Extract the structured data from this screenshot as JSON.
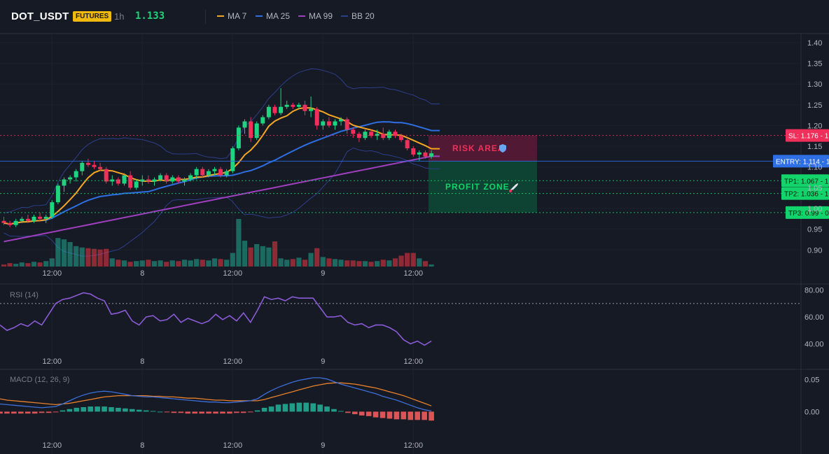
{
  "header": {
    "symbol": "DOT_USDT",
    "badge": "FUTURES",
    "timeframe": "1h",
    "last_price": "1.133",
    "indicators": [
      {
        "label": "MA 7",
        "color": "#f5a623"
      },
      {
        "label": "MA 25",
        "color": "#2f6fe4"
      },
      {
        "label": "MA 99",
        "color": "#a03fbf"
      },
      {
        "label": "BB 20",
        "color": "#2d3e8a"
      }
    ]
  },
  "colors": {
    "up": "#22ab94",
    "down": "#f23645",
    "candle_up": "#1fd47e",
    "candle_down": "#f0305a",
    "sl": "#f0305a",
    "entry": "#2f6fe4",
    "tp": "#13d46a",
    "rsi": "#8a5bd6",
    "macd": "#3c6fd8",
    "signal": "#e8812a"
  },
  "chart_data": [
    {
      "type": "candlestick",
      "title": "DOT_USDT",
      "ylim": [
        0.86,
        1.42
      ],
      "y_ticks": [
        "1.40",
        "1.35",
        "1.30",
        "1.25",
        "1.20",
        "1.15",
        "1.10",
        "1.05",
        "1.00",
        "0.95",
        "0.90"
      ],
      "x_ticks": [
        "12:00",
        "8",
        "12:00",
        "9",
        "12:00"
      ],
      "x_tick_index": [
        8,
        23,
        38,
        53,
        68
      ],
      "candles": [
        [
          0.97,
          0.98,
          0.96,
          0.965
        ],
        [
          0.965,
          0.97,
          0.955,
          0.96
        ],
        [
          0.96,
          0.975,
          0.955,
          0.97
        ],
        [
          0.97,
          0.98,
          0.965,
          0.975
        ],
        [
          0.975,
          0.985,
          0.965,
          0.97
        ],
        [
          0.97,
          0.985,
          0.965,
          0.98
        ],
        [
          0.98,
          0.99,
          0.97,
          0.975
        ],
        [
          0.975,
          0.985,
          0.965,
          0.98
        ],
        [
          0.98,
          1.02,
          0.975,
          1.015
        ],
        [
          1.015,
          1.06,
          1.01,
          1.055
        ],
        [
          1.055,
          1.075,
          1.04,
          1.07
        ],
        [
          1.07,
          1.08,
          1.06,
          1.075
        ],
        [
          1.075,
          1.095,
          1.065,
          1.09
        ],
        [
          1.09,
          1.115,
          1.08,
          1.11
        ],
        [
          1.11,
          1.12,
          1.1,
          1.105
        ],
        [
          1.105,
          1.115,
          1.095,
          1.1
        ],
        [
          1.1,
          1.11,
          1.09,
          1.095
        ],
        [
          1.095,
          1.1,
          1.06,
          1.065
        ],
        [
          1.065,
          1.08,
          1.055,
          1.07
        ],
        [
          1.07,
          1.075,
          1.055,
          1.06
        ],
        [
          1.06,
          1.085,
          1.055,
          1.08
        ],
        [
          1.08,
          1.09,
          1.045,
          1.05
        ],
        [
          1.05,
          1.07,
          1.045,
          1.065
        ],
        [
          1.065,
          1.08,
          1.055,
          1.07
        ],
        [
          1.07,
          1.08,
          1.06,
          1.065
        ],
        [
          1.065,
          1.075,
          1.055,
          1.07
        ],
        [
          1.07,
          1.085,
          1.065,
          1.08
        ],
        [
          1.08,
          1.085,
          1.06,
          1.065
        ],
        [
          1.065,
          1.08,
          1.06,
          1.075
        ],
        [
          1.075,
          1.08,
          1.06,
          1.065
        ],
        [
          1.065,
          1.075,
          1.055,
          1.07
        ],
        [
          1.07,
          1.085,
          1.065,
          1.08
        ],
        [
          1.08,
          1.1,
          1.07,
          1.095
        ],
        [
          1.095,
          1.1,
          1.075,
          1.08
        ],
        [
          1.08,
          1.095,
          1.075,
          1.09
        ],
        [
          1.09,
          1.1,
          1.08,
          1.095
        ],
        [
          1.095,
          1.1,
          1.075,
          1.08
        ],
        [
          1.08,
          1.095,
          1.075,
          1.09
        ],
        [
          1.09,
          1.15,
          1.085,
          1.145
        ],
        [
          1.145,
          1.2,
          1.14,
          1.195
        ],
        [
          1.195,
          1.215,
          1.18,
          1.21
        ],
        [
          1.21,
          1.22,
          1.16,
          1.17
        ],
        [
          1.17,
          1.21,
          1.165,
          1.205
        ],
        [
          1.205,
          1.225,
          1.2,
          1.22
        ],
        [
          1.22,
          1.25,
          1.215,
          1.245
        ],
        [
          1.245,
          1.25,
          1.225,
          1.23
        ],
        [
          1.23,
          1.29,
          1.225,
          1.245
        ],
        [
          1.245,
          1.26,
          1.24,
          1.25
        ],
        [
          1.25,
          1.255,
          1.24,
          1.245
        ],
        [
          1.245,
          1.255,
          1.24,
          1.25
        ],
        [
          1.25,
          1.26,
          1.225,
          1.235
        ],
        [
          1.235,
          1.27,
          1.22,
          1.24
        ],
        [
          1.24,
          1.245,
          1.19,
          1.2
        ],
        [
          1.2,
          1.215,
          1.19,
          1.21
        ],
        [
          1.21,
          1.22,
          1.195,
          1.2
        ],
        [
          1.2,
          1.215,
          1.19,
          1.21
        ],
        [
          1.21,
          1.22,
          1.2,
          1.215
        ],
        [
          1.215,
          1.22,
          1.18,
          1.19
        ],
        [
          1.19,
          1.195,
          1.17,
          1.18
        ],
        [
          1.18,
          1.185,
          1.16,
          1.17
        ],
        [
          1.17,
          1.19,
          1.165,
          1.185
        ],
        [
          1.185,
          1.19,
          1.17,
          1.175
        ],
        [
          1.175,
          1.19,
          1.165,
          1.18
        ],
        [
          1.18,
          1.195,
          1.165,
          1.17
        ],
        [
          1.17,
          1.19,
          1.165,
          1.185
        ],
        [
          1.185,
          1.19,
          1.17,
          1.175
        ],
        [
          1.175,
          1.18,
          1.16,
          1.165
        ],
        [
          1.165,
          1.17,
          1.14,
          1.145
        ],
        [
          1.145,
          1.15,
          1.125,
          1.13
        ],
        [
          1.13,
          1.14,
          1.115,
          1.135
        ],
        [
          1.135,
          1.14,
          1.12,
          1.125
        ],
        [
          1.125,
          1.14,
          1.12,
          1.133
        ]
      ],
      "volume": [
        3,
        5,
        4,
        6,
        5,
        7,
        6,
        8,
        12,
        42,
        40,
        36,
        30,
        28,
        27,
        26,
        25,
        26,
        12,
        10,
        9,
        7,
        8,
        9,
        10,
        8,
        9,
        7,
        9,
        8,
        10,
        9,
        11,
        10,
        9,
        12,
        11,
        10,
        20,
        70,
        38,
        28,
        33,
        30,
        28,
        37,
        12,
        10,
        11,
        13,
        10,
        20,
        27,
        14,
        12,
        11,
        10,
        9,
        9,
        8,
        8,
        7,
        8,
        10,
        9,
        12,
        16,
        20,
        20,
        12,
        8,
        3
      ],
      "ma7_color": "#f5a623",
      "ma25_color": "#2f6fe4",
      "ma99_color": "#a03fbf",
      "bb_color": "#2d3e8a",
      "levels": [
        {
          "name": "SL",
          "tag": "SL: 1.176",
          "axis": "1.18",
          "value": 1.176,
          "kind": "sl"
        },
        {
          "name": "ENTRY",
          "tag": "ENTRY: 1.114",
          "axis": "1.11",
          "value": 1.114,
          "kind": "entry"
        },
        {
          "name": "TP1",
          "tag": "TP1: 1.067",
          "axis": "1.07",
          "value": 1.067,
          "kind": "tp"
        },
        {
          "name": "TP2",
          "tag": "TP2: 1.036",
          "axis": "1.04",
          "value": 1.036,
          "kind": "tp"
        },
        {
          "name": "TP3",
          "tag": "TP3: 0.99",
          "axis": "0.99",
          "value": 0.99,
          "kind": "tp"
        }
      ],
      "zones": {
        "risk": {
          "label": "RISK AREA",
          "top": 1.176,
          "bottom": 1.114
        },
        "profit": {
          "label": "PROFIT ZONE",
          "top": 1.114,
          "bottom": 0.99
        }
      }
    },
    {
      "type": "line",
      "title": "RSI (14)",
      "ylim": [
        34,
        84
      ],
      "y_ticks": [
        "80.00",
        "60.00",
        "40.00"
      ],
      "y_tick_values": [
        80,
        60,
        40
      ],
      "overbought": 70,
      "x_ticks": [
        "12:00",
        "8",
        "12:00",
        "9",
        "12:00"
      ],
      "values": [
        54,
        50,
        52,
        55,
        53,
        57,
        54,
        62,
        70,
        73,
        74,
        76,
        78,
        77,
        74,
        72,
        62,
        63,
        65,
        57,
        54,
        60,
        61,
        57,
        58,
        62,
        56,
        59,
        57,
        55,
        57,
        62,
        58,
        61,
        57,
        63,
        56,
        65,
        75,
        73,
        74,
        72,
        75,
        74,
        74,
        74,
        67,
        60,
        60,
        61,
        56,
        54,
        55,
        52,
        54,
        54,
        52,
        49,
        43,
        40,
        42,
        39,
        42
      ]
    },
    {
      "type": "bar",
      "title": "MACD (12, 26, 9)",
      "ylim": [
        -0.04,
        0.065
      ],
      "y_ticks": [
        "0.05",
        "0.00"
      ],
      "y_tick_values": [
        0.05,
        0.0
      ],
      "x_ticks": [
        "12:00",
        "8",
        "12:00",
        "9",
        "12:00"
      ],
      "macd": [
        0.012,
        0.011,
        0.01,
        0.009,
        0.008,
        0.007,
        0.006,
        0.007,
        0.008,
        0.012,
        0.017,
        0.022,
        0.026,
        0.029,
        0.031,
        0.032,
        0.031,
        0.029,
        0.027,
        0.025,
        0.024,
        0.023,
        0.023,
        0.022,
        0.021,
        0.02,
        0.019,
        0.018,
        0.017,
        0.016,
        0.015,
        0.015,
        0.014,
        0.014,
        0.015,
        0.016,
        0.017,
        0.02,
        0.027,
        0.033,
        0.038,
        0.042,
        0.046,
        0.049,
        0.051,
        0.053,
        0.053,
        0.051,
        0.047,
        0.043,
        0.04,
        0.037,
        0.034,
        0.031,
        0.028,
        0.024,
        0.021,
        0.018,
        0.014,
        0.01,
        0.006,
        0.003,
        0.001
      ],
      "signal": [
        0.02,
        0.018,
        0.017,
        0.016,
        0.015,
        0.014,
        0.013,
        0.012,
        0.011,
        0.012,
        0.013,
        0.015,
        0.017,
        0.019,
        0.021,
        0.023,
        0.024,
        0.025,
        0.025,
        0.025,
        0.025,
        0.025,
        0.024,
        0.024,
        0.023,
        0.023,
        0.022,
        0.021,
        0.021,
        0.02,
        0.019,
        0.018,
        0.018,
        0.017,
        0.017,
        0.017,
        0.017,
        0.017,
        0.019,
        0.022,
        0.025,
        0.028,
        0.031,
        0.034,
        0.037,
        0.04,
        0.042,
        0.044,
        0.045,
        0.045,
        0.044,
        0.043,
        0.041,
        0.039,
        0.037,
        0.034,
        0.031,
        0.028,
        0.025,
        0.021,
        0.017,
        0.013,
        0.009
      ],
      "hist": [
        -0.003,
        -0.003,
        -0.003,
        -0.003,
        -0.003,
        -0.003,
        -0.002,
        -0.002,
        -0.001,
        0.002,
        0.004,
        0.006,
        0.007,
        0.008,
        0.008,
        0.008,
        0.007,
        0.006,
        0.005,
        0.004,
        0.003,
        0.002,
        0.001,
        0.0,
        -0.001,
        -0.002,
        -0.002,
        -0.003,
        -0.003,
        -0.003,
        -0.003,
        -0.003,
        -0.003,
        -0.003,
        -0.002,
        -0.002,
        -0.001,
        0.002,
        0.006,
        0.008,
        0.011,
        0.012,
        0.013,
        0.014,
        0.014,
        0.013,
        0.011,
        0.008,
        0.004,
        0.001,
        -0.002,
        -0.004,
        -0.006,
        -0.007,
        -0.009,
        -0.01,
        -0.011,
        -0.012,
        -0.012,
        -0.013,
        -0.013,
        -0.013,
        -0.014
      ]
    }
  ],
  "zone_icons": {
    "risk": "shield-icon",
    "profit": "rocket-icon"
  }
}
